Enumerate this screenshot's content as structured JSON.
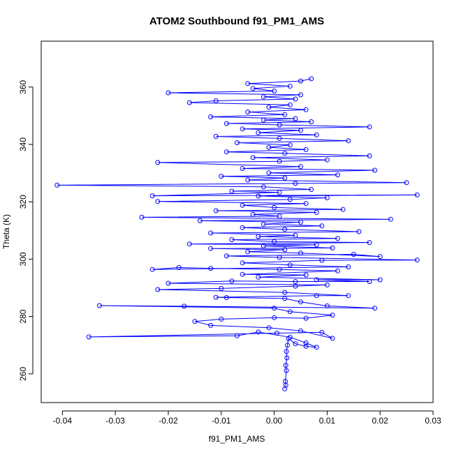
{
  "chart_data": {
    "type": "scatter",
    "connected": true,
    "title": "ATOM2 Southbound f91_PM1_AMS",
    "xlabel": "f91_PM1_AMS",
    "ylabel": "Theta (K)",
    "xlim": [
      -0.044,
      0.03
    ],
    "ylim": [
      250,
      376
    ],
    "xticks": [
      -0.04,
      -0.03,
      -0.02,
      -0.01,
      0.0,
      0.01,
      0.02,
      0.03
    ],
    "xtick_labels": [
      "-0.04",
      "-0.03",
      "-0.02",
      "-0.01",
      "0.00",
      "0.01",
      "0.02",
      "0.03"
    ],
    "yticks": [
      260,
      280,
      300,
      320,
      340,
      360
    ],
    "ytick_labels": [
      "260",
      "280",
      "300",
      "320",
      "340",
      "360"
    ],
    "grid": false,
    "marker": "open-circle",
    "color": "#0000ff",
    "series": [
      {
        "name": "f91_PM1_AMS",
        "points": [
          [
            0.002,
            254.8
          ],
          [
            0.0022,
            256.1
          ],
          [
            0.0021,
            257.4
          ],
          [
            0.0023,
            261.2
          ],
          [
            0.0022,
            263.0
          ],
          [
            0.0024,
            265.6
          ],
          [
            0.0023,
            267.8
          ],
          [
            0.0025,
            270.0
          ],
          [
            0.0027,
            272.3
          ],
          [
            0.004,
            270.5
          ],
          [
            0.006,
            269.6
          ],
          [
            0.008,
            269.3
          ],
          [
            0.006,
            270.8
          ],
          [
            0.003,
            272.8
          ],
          [
            -0.003,
            274.6
          ],
          [
            -0.007,
            273.3
          ],
          [
            -0.035,
            272.9
          ],
          [
            0.0005,
            274.2
          ],
          [
            0.009,
            274.5
          ],
          [
            0.011,
            272.4
          ],
          [
            0.005,
            275.0
          ],
          [
            -0.001,
            276.1
          ],
          [
            -0.012,
            276.9
          ],
          [
            -0.015,
            278.3
          ],
          [
            -0.01,
            279.1
          ],
          [
            0.0,
            279.6
          ],
          [
            0.006,
            279.4
          ],
          [
            0.011,
            280.5
          ],
          [
            0.003,
            281.7
          ],
          [
            0.0,
            282.9
          ],
          [
            -0.033,
            283.8
          ],
          [
            -0.017,
            283.6
          ],
          [
            0.019,
            282.9
          ],
          [
            0.01,
            283.7
          ],
          [
            0.005,
            285.1
          ],
          [
            0.002,
            286.3
          ],
          [
            -0.009,
            286.6
          ],
          [
            -0.011,
            286.7
          ],
          [
            0.008,
            287.3
          ],
          [
            0.014,
            287.3
          ],
          [
            0.002,
            288.4
          ],
          [
            -0.022,
            289.4
          ],
          [
            -0.01,
            289.8
          ],
          [
            0.004,
            290.6
          ],
          [
            0.01,
            291.0
          ],
          [
            -0.02,
            291.6
          ],
          [
            -0.008,
            292.4
          ],
          [
            0.004,
            292.2
          ],
          [
            0.018,
            292.2
          ],
          [
            0.008,
            292.8
          ],
          [
            0.02,
            292.8
          ],
          [
            -0.003,
            293.7
          ],
          [
            0.006,
            294.5
          ],
          [
            -0.006,
            294.7
          ],
          [
            0.012,
            295.9
          ],
          [
            0.001,
            296.4
          ],
          [
            -0.012,
            296.8
          ],
          [
            -0.018,
            297.1
          ],
          [
            -0.023,
            296.4
          ],
          [
            0.014,
            297.3
          ],
          [
            0.003,
            298.0
          ],
          [
            -0.006,
            298.7
          ],
          [
            0.009,
            299.6
          ],
          [
            0.027,
            299.7
          ],
          [
            0.001,
            300.6
          ],
          [
            -0.009,
            301.1
          ],
          [
            0.015,
            301.7
          ],
          [
            0.02,
            300.9
          ],
          [
            0.005,
            302.1
          ],
          [
            -0.005,
            302.6
          ],
          [
            0.002,
            303.3
          ],
          [
            -0.012,
            303.7
          ],
          [
            0.011,
            303.9
          ],
          [
            -0.002,
            304.6
          ],
          [
            0.008,
            305.0
          ],
          [
            -0.016,
            305.3
          ],
          [
            0.018,
            305.8
          ],
          [
            0.0,
            306.1
          ],
          [
            -0.008,
            306.8
          ],
          [
            0.012,
            307.2
          ],
          [
            -0.003,
            307.9
          ],
          [
            0.004,
            308.3
          ],
          [
            -0.012,
            309.1
          ],
          [
            0.016,
            309.6
          ],
          [
            0.002,
            310.4
          ],
          [
            -0.006,
            311.0
          ],
          [
            0.009,
            311.6
          ],
          [
            -0.002,
            312.2
          ],
          [
            0.005,
            312.9
          ],
          [
            -0.014,
            313.4
          ],
          [
            0.022,
            313.9
          ],
          [
            -0.025,
            314.6
          ],
          [
            0.001,
            315.0
          ],
          [
            -0.004,
            315.6
          ],
          [
            0.008,
            316.3
          ],
          [
            -0.011,
            316.9
          ],
          [
            0.013,
            317.3
          ],
          [
            0.0,
            318.0
          ],
          [
            -0.006,
            318.8
          ],
          [
            0.006,
            319.4
          ],
          [
            -0.022,
            320.1
          ],
          [
            0.003,
            320.8
          ],
          [
            0.01,
            321.4
          ],
          [
            -0.003,
            322.0
          ],
          [
            0.027,
            322.4
          ],
          [
            -0.023,
            322.1
          ],
          [
            0.001,
            323.3
          ],
          [
            -0.008,
            323.7
          ],
          [
            0.007,
            324.3
          ],
          [
            -0.002,
            325.2
          ],
          [
            -0.041,
            325.8
          ],
          [
            0.004,
            326.4
          ],
          [
            0.025,
            326.7
          ],
          [
            -0.005,
            327.6
          ],
          [
            0.002,
            328.3
          ],
          [
            -0.01,
            328.9
          ],
          [
            0.012,
            329.4
          ],
          [
            -0.001,
            330.1
          ],
          [
            0.019,
            331.0
          ],
          [
            -0.006,
            331.6
          ],
          [
            0.005,
            332.3
          ],
          [
            -0.022,
            333.7
          ],
          [
            0.001,
            334.1
          ],
          [
            0.01,
            334.6
          ],
          [
            -0.004,
            335.4
          ],
          [
            0.018,
            336.0
          ],
          [
            0.002,
            336.9
          ],
          [
            -0.009,
            337.4
          ],
          [
            0.006,
            338.2
          ],
          [
            -0.001,
            339.0
          ],
          [
            0.003,
            339.8
          ],
          [
            -0.007,
            340.6
          ],
          [
            0.014,
            341.3
          ],
          [
            0.001,
            342.1
          ],
          [
            -0.011,
            342.8
          ],
          [
            0.008,
            343.3
          ],
          [
            -0.003,
            344.1
          ],
          [
            0.005,
            344.9
          ],
          [
            -0.006,
            345.4
          ],
          [
            0.018,
            346.1
          ],
          [
            0.001,
            346.8
          ],
          [
            -0.009,
            347.3
          ],
          [
            0.007,
            347.9
          ],
          [
            -0.002,
            348.5
          ],
          [
            0.004,
            349.0
          ],
          [
            -0.012,
            349.6
          ],
          [
            0.002,
            350.4
          ],
          [
            -0.005,
            351.3
          ],
          [
            0.006,
            352.1
          ],
          [
            -0.001,
            353.0
          ],
          [
            0.003,
            353.8
          ],
          [
            -0.016,
            354.6
          ],
          [
            -0.011,
            355.2
          ],
          [
            0.004,
            355.8
          ],
          [
            -0.002,
            356.6
          ],
          [
            0.005,
            357.3
          ],
          [
            -0.02,
            358.0
          ],
          [
            0.0,
            358.6
          ],
          [
            -0.004,
            359.5
          ],
          [
            0.003,
            360.3
          ],
          [
            -0.005,
            361.2
          ],
          [
            0.005,
            362.1
          ],
          [
            0.007,
            362.9
          ]
        ]
      }
    ]
  }
}
